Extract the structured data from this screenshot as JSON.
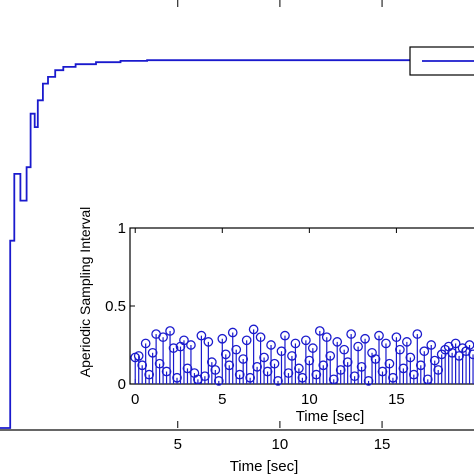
{
  "chart_data": [
    {
      "id": "main",
      "type": "line",
      "xlabel": "Time [sec]",
      "ylabel": "",
      "xlim": [
        -3.7,
        19.5
      ],
      "ylim": [
        0,
        1.28
      ],
      "x_ticks": [
        5,
        10,
        15
      ],
      "grid": false,
      "legend": "top-right",
      "legend_entries": [
        ""
      ],
      "color": "#1a1acd",
      "series": [
        {
          "step": true,
          "points": [
            [
              -3.7,
              0.0
            ],
            [
              -3.2,
              0.56
            ],
            [
              -3.0,
              0.76
            ],
            [
              -2.7,
              0.68
            ],
            [
              -2.4,
              0.78
            ],
            [
              -2.2,
              0.94
            ],
            [
              -2.0,
              0.9
            ],
            [
              -1.85,
              0.98
            ],
            [
              -1.6,
              1.03
            ],
            [
              -1.35,
              1.05
            ],
            [
              -1.0,
              1.07
            ],
            [
              -0.6,
              1.08
            ],
            [
              0.0,
              1.088
            ],
            [
              1.0,
              1.094
            ],
            [
              2.2,
              1.098
            ],
            [
              3.5,
              1.1
            ],
            [
              19.5,
              1.1
            ]
          ]
        }
      ]
    },
    {
      "id": "inset",
      "type": "scatter",
      "style": "stem",
      "xlabel": "Time [sec]",
      "ylabel": "Aperiodic Sampling Interval",
      "xlim": [
        -0.3,
        19.8
      ],
      "ylim": [
        0,
        1
      ],
      "x_ticks": [
        0,
        5,
        10,
        15
      ],
      "y_ticks": [
        0,
        0.5,
        1
      ],
      "y_tick_labels": [
        "0",
        "0.5",
        "1"
      ],
      "color": "#1a1acd",
      "x": [
        0.0,
        0.2,
        0.4,
        0.6,
        0.8,
        1.0,
        1.2,
        1.4,
        1.6,
        1.8,
        2.0,
        2.2,
        2.4,
        2.6,
        2.8,
        3.0,
        3.2,
        3.4,
        3.6,
        3.8,
        4.0,
        4.2,
        4.4,
        4.6,
        4.8,
        5.0,
        5.2,
        5.4,
        5.6,
        5.8,
        6.0,
        6.2,
        6.4,
        6.6,
        6.8,
        7.0,
        7.2,
        7.4,
        7.6,
        7.8,
        8.0,
        8.2,
        8.4,
        8.6,
        8.8,
        9.0,
        9.2,
        9.4,
        9.6,
        9.8,
        10.0,
        10.2,
        10.4,
        10.6,
        10.8,
        11.0,
        11.2,
        11.4,
        11.6,
        11.8,
        12.0,
        12.2,
        12.4,
        12.6,
        12.8,
        13.0,
        13.2,
        13.4,
        13.6,
        13.8,
        14.0,
        14.2,
        14.4,
        14.6,
        14.8,
        15.0,
        15.2,
        15.4,
        15.6,
        15.8,
        16.0,
        16.2,
        16.4,
        16.6,
        16.8,
        17.0,
        17.2,
        17.4,
        17.6,
        17.8,
        18.0,
        18.2,
        18.4,
        18.6,
        18.8,
        19.0,
        19.2,
        19.4
      ],
      "y": [
        0.17,
        0.18,
        0.12,
        0.26,
        0.06,
        0.2,
        0.32,
        0.13,
        0.3,
        0.08,
        0.34,
        0.23,
        0.04,
        0.24,
        0.28,
        0.1,
        0.25,
        0.07,
        0.03,
        0.31,
        0.05,
        0.27,
        0.14,
        0.09,
        0.02,
        0.29,
        0.19,
        0.12,
        0.33,
        0.22,
        0.06,
        0.16,
        0.28,
        0.04,
        0.35,
        0.11,
        0.3,
        0.17,
        0.08,
        0.25,
        0.13,
        0.02,
        0.21,
        0.31,
        0.07,
        0.18,
        0.26,
        0.1,
        0.04,
        0.28,
        0.15,
        0.23,
        0.06,
        0.34,
        0.12,
        0.3,
        0.18,
        0.03,
        0.27,
        0.09,
        0.22,
        0.14,
        0.32,
        0.05,
        0.24,
        0.11,
        0.29,
        0.02,
        0.2,
        0.16,
        0.31,
        0.08,
        0.26,
        0.13,
        0.04,
        0.3,
        0.22,
        0.1,
        0.27,
        0.17,
        0.06,
        0.32,
        0.12,
        0.21,
        0.03,
        0.25,
        0.15,
        0.09,
        0.19,
        0.22,
        0.24,
        0.2,
        0.26,
        0.18,
        0.23,
        0.21,
        0.25,
        0.19
      ]
    }
  ]
}
